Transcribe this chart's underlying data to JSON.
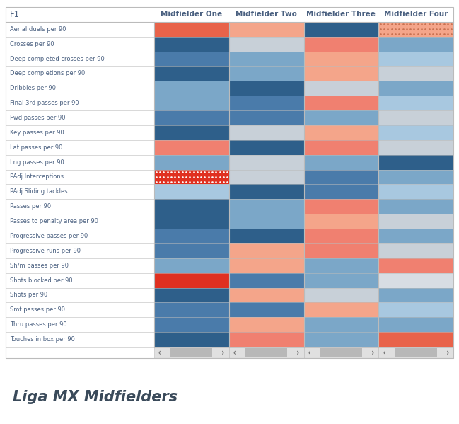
{
  "title": "Liga MX Midfielders",
  "header_label": "F1",
  "column_headers": [
    "Midfielder One",
    "Midfielder Two",
    "Midfielder Three",
    "Midfielder Four"
  ],
  "row_labels": [
    "Aerial duels per 90",
    "Crosses per 90",
    "Deep completed crosses per 90",
    "Deep completions per 90",
    "Dribbles per 90",
    "Final 3rd passes per 90",
    "Fwd passes per 90",
    "Key passes per 90",
    "Lat passes per 90",
    "Lng passes per 90",
    "PAdj Interceptions",
    "PAdj Sliding tackles",
    "Passes per 90",
    "Passes to penalty area per 90",
    "Progressive passes per 90",
    "Progressive runs per 90",
    "Sh/m passes per 90",
    "Shots blocked per 90",
    "Shots per 90",
    "Smt passes per 90",
    "Thru passes per 90",
    "Touches in box per 90"
  ],
  "cell_colors": {
    "Midfielder One": [
      "#E8634A",
      "#2E5F8A",
      "#4A7BAA",
      "#2E5F8A",
      "#7BA7C8",
      "#7BA7C8",
      "#4A7BAA",
      "#2E5F8A",
      "#F08070",
      "#7BA7C8",
      "#E03020",
      "#A8C8E0",
      "#2E5F8A",
      "#2E5F8A",
      "#4A7BAA",
      "#4A7BAA",
      "#7BA7C8",
      "#E03020",
      "#2E5F8A",
      "#4A7BAA",
      "#4A7BAA",
      "#2E5F8A"
    ],
    "Midfielder Two": [
      "#F4A58A",
      "#C8D0D8",
      "#7BA7C8",
      "#7BA7C8",
      "#2E5F8A",
      "#4A7BAA",
      "#4A7BAA",
      "#C8D0D8",
      "#2E5F8A",
      "#C8D0D8",
      "#C8D0D8",
      "#2E5F8A",
      "#7BA7C8",
      "#7BA7C8",
      "#2E5F8A",
      "#F4A58A",
      "#F4A58A",
      "#4A7BAA",
      "#F4A58A",
      "#4A7BAA",
      "#F4A58A",
      "#F08070"
    ],
    "Midfielder Three": [
      "#2E5F8A",
      "#F08070",
      "#F4A58A",
      "#F4A58A",
      "#C8D0D8",
      "#F08070",
      "#7BA7C8",
      "#F4A58A",
      "#F08070",
      "#7BA7C8",
      "#4A7BAA",
      "#4A7BAA",
      "#F08070",
      "#F4A58A",
      "#F08070",
      "#F08070",
      "#7BA7C8",
      "#7BA7C8",
      "#C8D0D8",
      "#F4A58A",
      "#7BA7C8",
      "#7BA7C8"
    ],
    "Midfielder Four": [
      "#F4A58A",
      "#7BA7C8",
      "#A8C8E0",
      "#C8D0D8",
      "#7BA7C8",
      "#A8C8E0",
      "#C8D0D8",
      "#A8C8E0",
      "#C8D0D8",
      "#2E5F8A",
      "#7BA7C8",
      "#A8C8E0",
      "#7BA7C8",
      "#C8D0D8",
      "#7BA7C8",
      "#C8D0D8",
      "#F08070",
      "#D8DDE3",
      "#7BA7C8",
      "#A8C8E0",
      "#7BA7C8",
      "#E8634A"
    ]
  },
  "dotted_cells": [
    {
      "row": 10,
      "col": 0,
      "base": "#E03020",
      "dot": "#FFFFFF"
    },
    {
      "row": 0,
      "col": 3,
      "base": "#F4A58A",
      "dot": "#C87050"
    }
  ],
  "bg_color": "#FFFFFF",
  "border_color": "#BBBBBB",
  "header_text_color": "#4A6080",
  "row_label_color": "#4A6080",
  "scrollbar_bg": "#E0E0E0",
  "scrollbar_thumb": "#B8B8B8",
  "arrow_color": "#666666",
  "title_color": "#3A4A5A"
}
